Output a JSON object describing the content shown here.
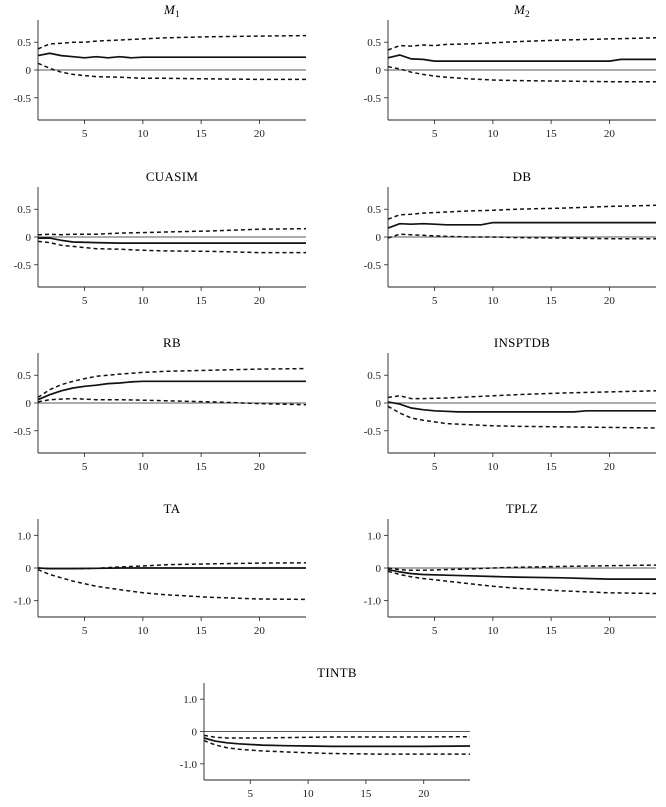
{
  "chart_data": [
    {
      "type": "line",
      "title": "M1",
      "title_parts": {
        "base": "M",
        "sub": "1"
      },
      "xlim": [
        1,
        24
      ],
      "ylim": [
        -0.9,
        0.9
      ],
      "xticks": [
        5,
        10,
        15,
        20
      ],
      "yticks": [
        0.5,
        0,
        -0.5
      ],
      "ytick_labels": [
        "0.5",
        "0",
        "-0.5"
      ],
      "series": [
        {
          "name": "upper",
          "style": "dashed",
          "x": [
            1,
            2,
            3,
            4,
            5,
            6,
            8,
            10,
            12,
            16,
            20,
            24
          ],
          "y": [
            0.38,
            0.47,
            0.48,
            0.5,
            0.5,
            0.52,
            0.54,
            0.56,
            0.58,
            0.6,
            0.61,
            0.62
          ]
        },
        {
          "name": "response",
          "style": "solid",
          "x": [
            1,
            2,
            3,
            4,
            5,
            6,
            7,
            8,
            9,
            10,
            12,
            16,
            20,
            24
          ],
          "y": [
            0.26,
            0.3,
            0.26,
            0.24,
            0.22,
            0.24,
            0.22,
            0.24,
            0.22,
            0.23,
            0.23,
            0.23,
            0.23,
            0.23
          ]
        },
        {
          "name": "lower",
          "style": "dashed",
          "x": [
            1,
            2,
            3,
            4,
            5,
            6,
            8,
            10,
            12,
            16,
            20,
            24
          ],
          "y": [
            0.12,
            0.03,
            -0.04,
            -0.08,
            -0.1,
            -0.12,
            -0.13,
            -0.15,
            -0.15,
            -0.16,
            -0.17,
            -0.17
          ]
        }
      ]
    },
    {
      "type": "line",
      "title": "M2",
      "title_parts": {
        "base": "M",
        "sub": "2"
      },
      "xlim": [
        1,
        24
      ],
      "ylim": [
        -0.9,
        0.9
      ],
      "xticks": [
        5,
        10,
        15,
        20
      ],
      "yticks": [
        0.5,
        0,
        -0.5
      ],
      "ytick_labels": [
        "0.5",
        "0",
        "-0.5"
      ],
      "series": [
        {
          "name": "upper",
          "style": "dashed",
          "x": [
            1,
            2,
            3,
            4,
            5,
            6,
            8,
            10,
            12,
            16,
            20,
            24
          ],
          "y": [
            0.36,
            0.44,
            0.43,
            0.45,
            0.44,
            0.46,
            0.47,
            0.49,
            0.51,
            0.54,
            0.56,
            0.58
          ]
        },
        {
          "name": "response",
          "style": "solid",
          "x": [
            1,
            2,
            3,
            4,
            5,
            6,
            8,
            10,
            12,
            16,
            20,
            21,
            24
          ],
          "y": [
            0.22,
            0.27,
            0.2,
            0.19,
            0.16,
            0.16,
            0.16,
            0.16,
            0.16,
            0.16,
            0.16,
            0.19,
            0.19
          ]
        },
        {
          "name": "lower",
          "style": "dashed",
          "x": [
            1,
            2,
            3,
            4,
            5,
            6,
            8,
            10,
            12,
            16,
            20,
            24
          ],
          "y": [
            0.06,
            0.02,
            -0.04,
            -0.08,
            -0.11,
            -0.13,
            -0.16,
            -0.18,
            -0.19,
            -0.2,
            -0.21,
            -0.21
          ]
        }
      ]
    },
    {
      "type": "line",
      "title": "CUASIM",
      "xlim": [
        1,
        24
      ],
      "ylim": [
        -0.9,
        0.9
      ],
      "xticks": [
        5,
        10,
        15,
        20
      ],
      "yticks": [
        0.5,
        0,
        -0.5
      ],
      "ytick_labels": [
        "0.5",
        "0",
        "-0.5"
      ],
      "series": [
        {
          "name": "upper",
          "style": "dashed",
          "x": [
            1,
            2,
            3,
            4,
            6,
            8,
            10,
            12,
            16,
            20,
            24
          ],
          "y": [
            0.04,
            0.05,
            0.04,
            0.05,
            0.05,
            0.07,
            0.08,
            0.09,
            0.11,
            0.14,
            0.15
          ]
        },
        {
          "name": "response",
          "style": "solid",
          "x": [
            1,
            2,
            3,
            4,
            6,
            8,
            10,
            12,
            16,
            20,
            24
          ],
          "y": [
            -0.02,
            -0.02,
            -0.06,
            -0.09,
            -0.1,
            -0.11,
            -0.11,
            -0.11,
            -0.11,
            -0.11,
            -0.11
          ]
        },
        {
          "name": "lower",
          "style": "dashed",
          "x": [
            1,
            2,
            3,
            4,
            5,
            6,
            8,
            10,
            12,
            16,
            20,
            24
          ],
          "y": [
            -0.08,
            -0.1,
            -0.15,
            -0.17,
            -0.19,
            -0.21,
            -0.22,
            -0.24,
            -0.25,
            -0.26,
            -0.28,
            -0.28
          ]
        }
      ]
    },
    {
      "type": "line",
      "title": "DB",
      "xlim": [
        1,
        24
      ],
      "ylim": [
        -0.9,
        0.9
      ],
      "xticks": [
        5,
        10,
        15,
        20
      ],
      "yticks": [
        0.5,
        0,
        -0.5
      ],
      "ytick_labels": [
        "0.5",
        "0",
        "-0.5"
      ],
      "series": [
        {
          "name": "upper",
          "style": "dashed",
          "x": [
            1,
            2,
            3,
            4,
            5,
            6,
            8,
            10,
            12,
            16,
            20,
            24
          ],
          "y": [
            0.32,
            0.4,
            0.41,
            0.43,
            0.44,
            0.45,
            0.47,
            0.48,
            0.5,
            0.52,
            0.55,
            0.57
          ]
        },
        {
          "name": "response",
          "style": "solid",
          "x": [
            1,
            2,
            3,
            4,
            5,
            6,
            8,
            9,
            10,
            12,
            16,
            20,
            24
          ],
          "y": [
            0.16,
            0.24,
            0.23,
            0.24,
            0.23,
            0.22,
            0.22,
            0.22,
            0.26,
            0.26,
            0.26,
            0.26,
            0.26
          ]
        },
        {
          "name": "lower",
          "style": "dashed",
          "x": [
            1,
            2,
            3,
            4,
            6,
            8,
            10,
            12,
            16,
            20,
            24
          ],
          "y": [
            -0.02,
            0.05,
            0.04,
            0.03,
            0.01,
            0.0,
            0.0,
            -0.01,
            -0.02,
            -0.03,
            -0.03
          ]
        }
      ]
    },
    {
      "type": "line",
      "title": "RB",
      "xlim": [
        1,
        24
      ],
      "ylim": [
        -0.9,
        0.9
      ],
      "xticks": [
        5,
        10,
        15,
        20
      ],
      "yticks": [
        0.5,
        0,
        -0.5
      ],
      "ytick_labels": [
        "0.5",
        "0",
        "-0.5"
      ],
      "series": [
        {
          "name": "upper",
          "style": "dashed",
          "x": [
            1,
            2,
            3,
            4,
            5,
            6,
            8,
            10,
            12,
            16,
            20,
            24
          ],
          "y": [
            0.1,
            0.24,
            0.33,
            0.39,
            0.44,
            0.48,
            0.52,
            0.55,
            0.57,
            0.59,
            0.61,
            0.62
          ]
        },
        {
          "name": "response",
          "style": "solid",
          "x": [
            1,
            2,
            3,
            4,
            5,
            6,
            7,
            8,
            9,
            10,
            12,
            16,
            20,
            24
          ],
          "y": [
            0.06,
            0.15,
            0.22,
            0.27,
            0.3,
            0.32,
            0.35,
            0.36,
            0.38,
            0.39,
            0.39,
            0.39,
            0.39,
            0.39
          ]
        },
        {
          "name": "lower",
          "style": "dashed",
          "x": [
            1,
            2,
            3,
            4,
            5,
            6,
            8,
            10,
            12,
            16,
            20,
            24
          ],
          "y": [
            0.02,
            0.06,
            0.07,
            0.08,
            0.07,
            0.06,
            0.06,
            0.05,
            0.04,
            0.02,
            -0.01,
            -0.03
          ]
        }
      ]
    },
    {
      "type": "line",
      "title": "INSPTDB",
      "xlim": [
        1,
        24
      ],
      "ylim": [
        -0.9,
        0.9
      ],
      "xticks": [
        5,
        10,
        15,
        20
      ],
      "yticks": [
        0.5,
        0,
        -0.5
      ],
      "ytick_labels": [
        "0.5",
        "0",
        "-0.5"
      ],
      "series": [
        {
          "name": "upper",
          "style": "dashed",
          "x": [
            1,
            2,
            3,
            4,
            6,
            8,
            10,
            12,
            16,
            20,
            24
          ],
          "y": [
            0.1,
            0.13,
            0.08,
            0.08,
            0.09,
            0.11,
            0.13,
            0.15,
            0.18,
            0.2,
            0.22
          ]
        },
        {
          "name": "response",
          "style": "solid",
          "x": [
            1,
            2,
            3,
            4,
            5,
            6,
            7,
            10,
            12,
            16,
            17,
            18,
            20,
            24
          ],
          "y": [
            0.02,
            -0.02,
            -0.09,
            -0.12,
            -0.14,
            -0.15,
            -0.16,
            -0.16,
            -0.16,
            -0.16,
            -0.16,
            -0.14,
            -0.14,
            -0.14
          ]
        },
        {
          "name": "lower",
          "style": "dashed",
          "x": [
            1,
            2,
            3,
            4,
            5,
            6,
            8,
            10,
            12,
            16,
            20,
            24
          ],
          "y": [
            -0.06,
            -0.18,
            -0.27,
            -0.31,
            -0.34,
            -0.37,
            -0.39,
            -0.41,
            -0.42,
            -0.43,
            -0.44,
            -0.45
          ]
        }
      ]
    },
    {
      "type": "line",
      "title": "TA",
      "xlim": [
        1,
        24
      ],
      "ylim": [
        -1.5,
        1.5
      ],
      "xticks": [
        5,
        10,
        15,
        20
      ],
      "yticks": [
        1.0,
        0,
        -1.0
      ],
      "ytick_labels": [
        "1.0",
        "0",
        "-1.0"
      ],
      "series": [
        {
          "name": "upper",
          "style": "dashed",
          "x": [
            1,
            2,
            4,
            6,
            8,
            10,
            12,
            16,
            20,
            24
          ],
          "y": [
            0.0,
            -0.02,
            -0.02,
            -0.01,
            0.03,
            0.06,
            0.1,
            0.13,
            0.15,
            0.16
          ]
        },
        {
          "name": "response",
          "style": "solid",
          "x": [
            1,
            2,
            4,
            6,
            8,
            10,
            12,
            16,
            20,
            24
          ],
          "y": [
            0.0,
            -0.02,
            -0.02,
            -0.01,
            0.0,
            0.0,
            0.0,
            0.0,
            0.0,
            0.0
          ]
        },
        {
          "name": "lower",
          "style": "dashed",
          "x": [
            1,
            2,
            3,
            4,
            5,
            6,
            8,
            10,
            12,
            16,
            20,
            24
          ],
          "y": [
            -0.05,
            -0.2,
            -0.3,
            -0.4,
            -0.48,
            -0.56,
            -0.66,
            -0.76,
            -0.82,
            -0.9,
            -0.95,
            -0.96
          ]
        }
      ]
    },
    {
      "type": "line",
      "title": "TPLZ",
      "xlim": [
        1,
        24
      ],
      "ylim": [
        -1.5,
        1.5
      ],
      "xticks": [
        5,
        10,
        15,
        20
      ],
      "yticks": [
        1.0,
        0,
        -1.0
      ],
      "ytick_labels": [
        "1.0",
        "0",
        "-1.0"
      ],
      "series": [
        {
          "name": "upper",
          "style": "dashed",
          "x": [
            1,
            2,
            3,
            4,
            6,
            8,
            10,
            12,
            16,
            20,
            24
          ],
          "y": [
            0.0,
            -0.05,
            -0.07,
            -0.07,
            -0.05,
            -0.03,
            0.0,
            0.02,
            0.05,
            0.07,
            0.09
          ]
        },
        {
          "name": "response",
          "style": "solid",
          "x": [
            1,
            2,
            3,
            4,
            6,
            8,
            10,
            12,
            16,
            18,
            20,
            24
          ],
          "y": [
            -0.05,
            -0.12,
            -0.17,
            -0.2,
            -0.22,
            -0.24,
            -0.26,
            -0.28,
            -0.3,
            -0.32,
            -0.34,
            -0.34
          ]
        },
        {
          "name": "lower",
          "style": "dashed",
          "x": [
            1,
            2,
            3,
            4,
            6,
            8,
            10,
            12,
            16,
            20,
            24
          ],
          "y": [
            -0.1,
            -0.2,
            -0.27,
            -0.32,
            -0.4,
            -0.48,
            -0.56,
            -0.62,
            -0.7,
            -0.76,
            -0.78
          ]
        }
      ]
    },
    {
      "type": "line",
      "title": "TINTB",
      "xlim": [
        1,
        24
      ],
      "ylim": [
        -1.5,
        1.5
      ],
      "xticks": [
        5,
        10,
        15,
        20
      ],
      "yticks": [
        1.0,
        0,
        -1.0
      ],
      "ytick_labels": [
        "1.0",
        "0",
        "-1.0"
      ],
      "series": [
        {
          "name": "upper",
          "style": "dashed",
          "x": [
            1,
            2,
            3,
            4,
            6,
            8,
            10,
            12,
            16,
            20,
            24
          ],
          "y": [
            -0.12,
            -0.18,
            -0.2,
            -0.2,
            -0.2,
            -0.19,
            -0.18,
            -0.17,
            -0.17,
            -0.17,
            -0.16
          ]
        },
        {
          "name": "response",
          "style": "solid",
          "x": [
            1,
            2,
            3,
            4,
            6,
            8,
            10,
            12,
            16,
            20,
            24
          ],
          "y": [
            -0.2,
            -0.3,
            -0.35,
            -0.38,
            -0.42,
            -0.44,
            -0.45,
            -0.46,
            -0.46,
            -0.46,
            -0.45
          ]
        },
        {
          "name": "lower",
          "style": "dashed",
          "x": [
            1,
            2,
            3,
            4,
            6,
            8,
            10,
            12,
            16,
            20,
            24
          ],
          "y": [
            -0.28,
            -0.42,
            -0.5,
            -0.55,
            -0.6,
            -0.63,
            -0.66,
            -0.68,
            -0.7,
            -0.7,
            -0.7
          ]
        }
      ]
    }
  ]
}
